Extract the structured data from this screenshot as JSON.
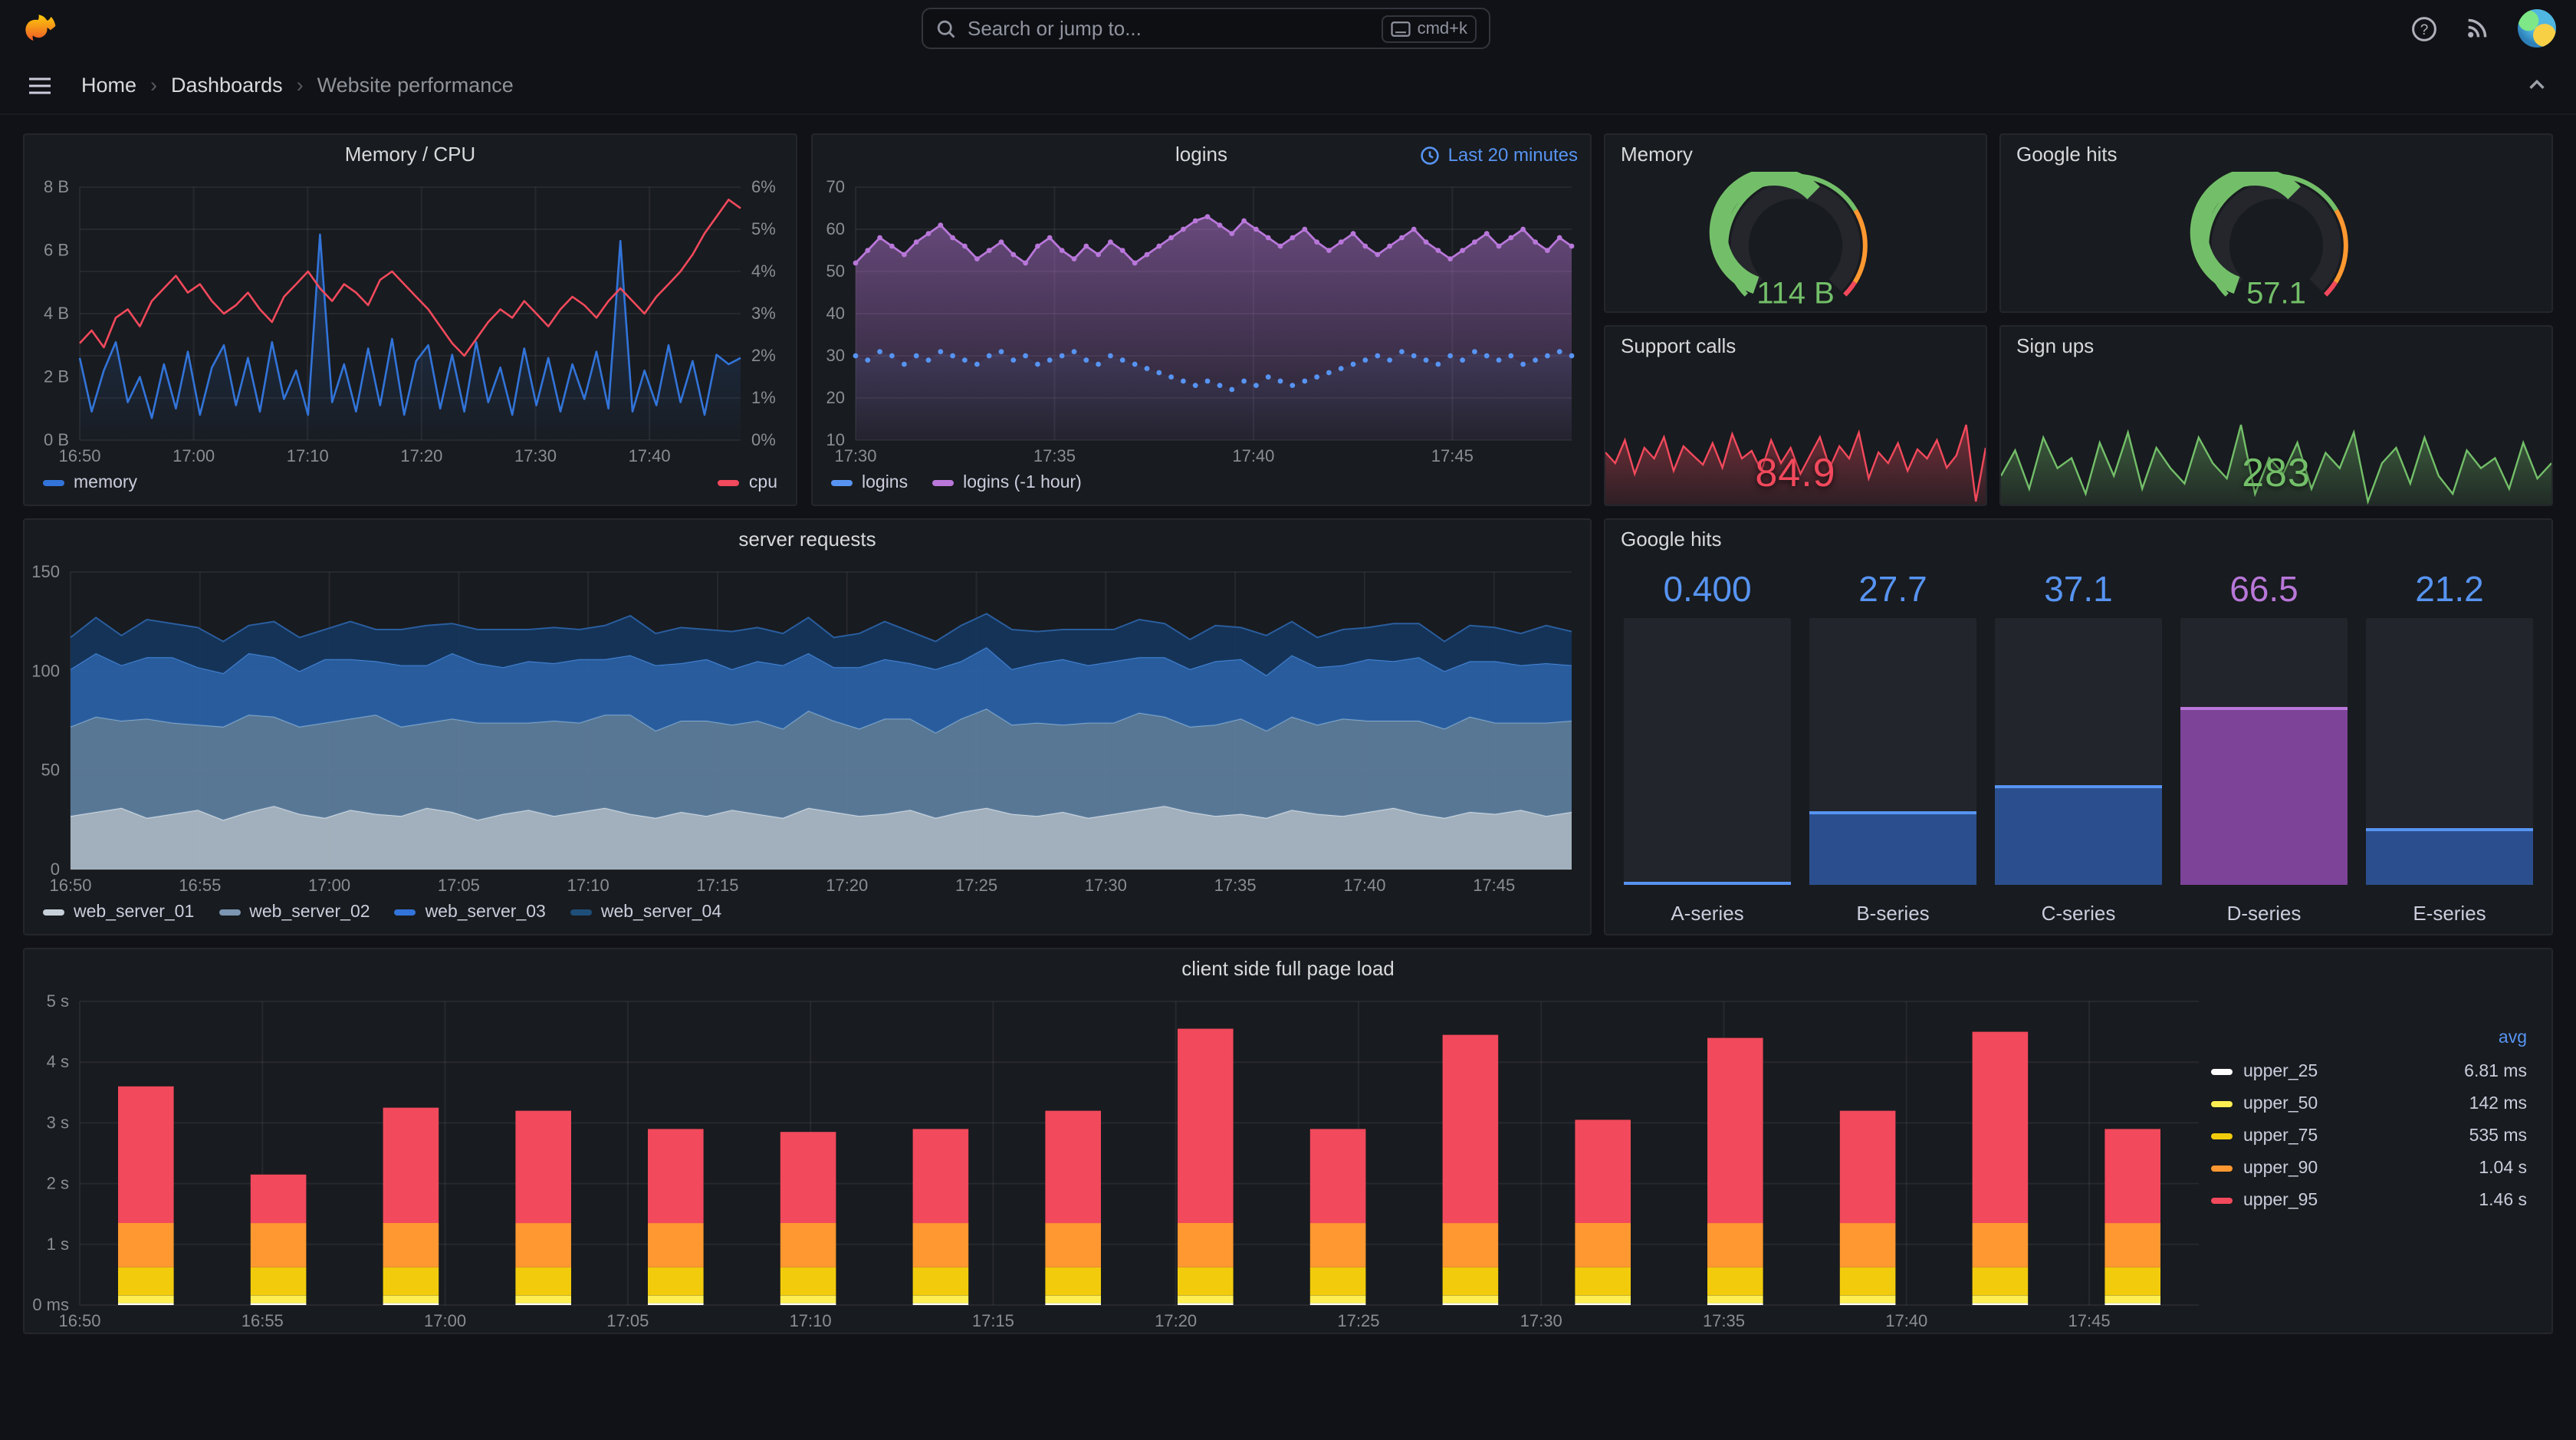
{
  "colors": {
    "blue": "#5794f2",
    "dark_blue": "#3274d9",
    "purple": "#b877d9",
    "red": "#f2495c",
    "green": "#73bf69",
    "orange": "#ff9830",
    "yellow": "#fade2a"
  },
  "topbar": {
    "search_placeholder": "Search or jump to...",
    "shortcut": "cmd+k"
  },
  "breadcrumb": {
    "items": [
      "Home",
      "Dashboards",
      "Website performance"
    ]
  },
  "panels": {
    "memory_cpu": {
      "title": "Memory / CPU",
      "legend": [
        {
          "name": "memory",
          "color": "#3274d9"
        },
        {
          "name": "cpu",
          "color": "#f2495c"
        }
      ]
    },
    "logins": {
      "title": "logins",
      "time_badge": "Last 20 minutes",
      "legend": [
        {
          "name": "logins",
          "color": "#5794f2"
        },
        {
          "name": "logins (-1 hour)",
          "color": "#b877d9"
        }
      ]
    },
    "memory_stat": {
      "title": "Memory"
    },
    "google_hits_gauge": {
      "title": "Google hits"
    },
    "support_calls": {
      "title": "Support calls",
      "value": "84.9"
    },
    "sign_ups": {
      "title": "Sign ups",
      "value": "283"
    },
    "server_requests": {
      "title": "server requests",
      "legend": [
        {
          "name": "web_server_01",
          "color": "#c7d0d9"
        },
        {
          "name": "web_server_02",
          "color": "#7b95b2"
        },
        {
          "name": "web_server_03",
          "color": "#3274d9"
        },
        {
          "name": "web_server_04",
          "color": "#1f4e79"
        }
      ]
    },
    "google_hits_bars": {
      "title": "Google hits"
    },
    "client_load": {
      "title": "client side full page load",
      "legend_header": "avg",
      "legend": [
        {
          "name": "upper_25",
          "value": "6.81 ms",
          "color": "#ffffff"
        },
        {
          "name": "upper_50",
          "value": "142 ms",
          "color": "#ffee52"
        },
        {
          "name": "upper_75",
          "value": "535 ms",
          "color": "#f2cc0c"
        },
        {
          "name": "upper_90",
          "value": "1.04 s",
          "color": "#ff9830"
        },
        {
          "name": "upper_95",
          "value": "1.46 s",
          "color": "#f2495c"
        }
      ]
    }
  },
  "chart_data": [
    {
      "id": "memory_cpu",
      "type": "line",
      "title": "Memory / CPU",
      "x_ticks": [
        "16:50",
        "17:00",
        "17:10",
        "17:20",
        "17:30",
        "17:40"
      ],
      "left_axis": {
        "labels": [
          "8 B",
          "6 B",
          "4 B",
          "2 B",
          "0 B"
        ],
        "min": 0,
        "max": 8,
        "unit": "bytes"
      },
      "right_axis": {
        "labels": [
          "6%",
          "5%",
          "4%",
          "3%",
          "2%",
          "1%",
          "0%"
        ],
        "min": 0,
        "max": 6,
        "unit": "percent"
      },
      "series": [
        {
          "name": "memory",
          "axis": "left",
          "color": "#3274d9",
          "values": [
            2.6,
            0.9,
            2.2,
            3.1,
            1.2,
            2.0,
            0.7,
            2.4,
            1.0,
            2.8,
            0.8,
            2.3,
            3.0,
            1.1,
            2.6,
            0.9,
            3.1,
            1.3,
            2.2,
            0.8,
            6.5,
            1.2,
            2.4,
            0.9,
            2.9,
            1.1,
            3.2,
            0.8,
            2.5,
            3.0,
            1.0,
            2.7,
            0.9,
            3.1,
            1.2,
            2.3,
            0.8,
            2.9,
            1.1,
            2.6,
            0.9,
            2.4,
            1.3,
            2.8,
            1.0,
            6.3,
            0.9,
            2.2,
            1.1,
            3.0,
            1.2,
            2.5,
            0.8,
            2.7,
            2.4,
            2.6
          ]
        },
        {
          "name": "cpu",
          "axis": "right",
          "color": "#f2495c",
          "values": [
            2.3,
            2.6,
            2.2,
            2.9,
            3.1,
            2.7,
            3.3,
            3.6,
            3.9,
            3.5,
            3.7,
            3.3,
            3.0,
            3.2,
            3.5,
            3.1,
            2.8,
            3.4,
            3.7,
            4.0,
            3.6,
            3.3,
            3.7,
            3.5,
            3.2,
            3.8,
            4.0,
            3.7,
            3.4,
            3.1,
            2.7,
            2.3,
            2.0,
            2.4,
            2.8,
            3.1,
            2.9,
            3.3,
            3.0,
            2.7,
            3.1,
            3.4,
            3.2,
            2.9,
            3.3,
            3.6,
            3.3,
            3.0,
            3.4,
            3.7,
            4.0,
            4.4,
            4.9,
            5.3,
            5.7,
            5.5
          ]
        }
      ]
    },
    {
      "id": "logins",
      "type": "line",
      "title": "logins",
      "time_range": "Last 20 minutes",
      "x_ticks": [
        "17:30",
        "17:35",
        "17:40",
        "17:45"
      ],
      "y_ticks": [
        "70",
        "60",
        "50",
        "40",
        "30",
        "20",
        "10"
      ],
      "ymin": 10,
      "ymax": 70,
      "series": [
        {
          "name": "logins (-1 hour)",
          "color": "#b877d9",
          "style": "area-points",
          "values": [
            52,
            55,
            58,
            56,
            54,
            57,
            59,
            61,
            58,
            56,
            53,
            55,
            57,
            54,
            52,
            56,
            58,
            55,
            53,
            56,
            54,
            57,
            55,
            52,
            54,
            56,
            58,
            60,
            62,
            63,
            61,
            59,
            62,
            60,
            58,
            56,
            58,
            60,
            57,
            55,
            57,
            59,
            56,
            54,
            56,
            58,
            60,
            57,
            55,
            53,
            55,
            57,
            59,
            56,
            58,
            60,
            57,
            55,
            58,
            56
          ]
        },
        {
          "name": "logins",
          "color": "#5794f2",
          "style": "points",
          "values": [
            30,
            29,
            31,
            30,
            28,
            30,
            29,
            31,
            30,
            29,
            28,
            30,
            31,
            29,
            30,
            28,
            29,
            30,
            31,
            29,
            28,
            30,
            29,
            28,
            27,
            26,
            25,
            24,
            23,
            24,
            23,
            22,
            24,
            23,
            25,
            24,
            23,
            24,
            25,
            26,
            27,
            28,
            29,
            30,
            29,
            31,
            30,
            29,
            28,
            30,
            29,
            31,
            30,
            29,
            30,
            28,
            29,
            30,
            31,
            30
          ]
        }
      ]
    },
    {
      "id": "memory_gauge",
      "type": "gauge",
      "title": "Memory",
      "value": "114 B",
      "percent": 57,
      "color": "#73bf69",
      "thresholds": [
        {
          "to": 72,
          "color": "#73bf69"
        },
        {
          "to": 95,
          "color": "#ff9830"
        },
        {
          "to": 100,
          "color": "#f2495c"
        }
      ]
    },
    {
      "id": "google_hits_gauge",
      "type": "gauge",
      "title": "Google hits",
      "value": "57.1",
      "percent": 57,
      "color": "#73bf69",
      "thresholds": [
        {
          "to": 72,
          "color": "#73bf69"
        },
        {
          "to": 95,
          "color": "#ff9830"
        },
        {
          "to": 100,
          "color": "#f2495c"
        }
      ]
    },
    {
      "id": "support_calls",
      "type": "area",
      "title": "Support calls",
      "value": "84.9",
      "color": "#f2495c",
      "values": [
        62,
        55,
        70,
        48,
        65,
        58,
        72,
        50,
        66,
        60,
        54,
        68,
        52,
        74,
        58,
        63,
        50,
        70,
        55,
        65,
        48,
        60,
        72,
        52,
        66,
        58,
        75,
        45,
        62,
        55,
        68,
        50,
        64,
        58,
        70,
        52,
        60,
        80,
        30,
        65
      ]
    },
    {
      "id": "sign_ups",
      "type": "area",
      "title": "Sign ups",
      "value": "283",
      "color": "#73bf69",
      "values": [
        55,
        65,
        50,
        70,
        58,
        62,
        48,
        68,
        55,
        72,
        50,
        66,
        58,
        52,
        70,
        60,
        54,
        75,
        48,
        62,
        56,
        68,
        50,
        64,
        58,
        72,
        45,
        60,
        66,
        52,
        70,
        55,
        48,
        65,
        58,
        62,
        50,
        68,
        54,
        60
      ]
    },
    {
      "id": "server_requests",
      "type": "area",
      "title": "server requests",
      "stacked": true,
      "x_ticks": [
        "16:50",
        "16:55",
        "17:00",
        "17:05",
        "17:10",
        "17:15",
        "17:20",
        "17:25",
        "17:30",
        "17:35",
        "17:40",
        "17:45"
      ],
      "y_ticks": [
        "150",
        "100",
        "50",
        "0"
      ],
      "ymin": 0,
      "ymax": 150,
      "series": [
        {
          "name": "web_server_01",
          "fill": "#aebdca",
          "stroke": "#cfd8e0",
          "values": [
            27,
            29,
            31,
            26,
            28,
            30,
            25,
            29,
            32,
            28,
            26,
            30,
            28,
            27,
            31,
            29,
            25,
            28,
            30,
            27,
            29,
            31,
            28,
            26,
            29,
            27,
            30,
            28,
            26,
            31,
            29,
            27,
            28,
            30,
            26,
            29,
            31,
            28,
            27,
            29,
            26,
            28,
            30,
            32,
            29,
            27,
            28,
            26,
            30,
            28,
            27,
            29,
            31,
            28,
            26,
            29,
            28,
            30,
            27,
            29
          ]
        },
        {
          "name": "web_server_02",
          "fill": "#5e7f9f",
          "stroke": "#82a6c4",
          "values": [
            45,
            48,
            44,
            50,
            46,
            43,
            47,
            49,
            45,
            44,
            48,
            46,
            50,
            45,
            43,
            47,
            49,
            46,
            44,
            48,
            45,
            47,
            50,
            44,
            46,
            48,
            43,
            47,
            45,
            49,
            46,
            44,
            48,
            46,
            43,
            47,
            50,
            45,
            47,
            44,
            48,
            46,
            49,
            45,
            43,
            46,
            48,
            44,
            47,
            45,
            49,
            46,
            44,
            47,
            45,
            48,
            46,
            44,
            47,
            46
          ]
        },
        {
          "name": "web_server_03",
          "fill": "#2a62a8",
          "stroke": "#4585d6",
          "values": [
            29,
            32,
            28,
            31,
            33,
            29,
            27,
            31,
            30,
            28,
            32,
            30,
            27,
            31,
            29,
            33,
            30,
            28,
            31,
            29,
            32,
            28,
            30,
            33,
            29,
            31,
            28,
            30,
            32,
            29,
            27,
            31,
            30,
            28,
            32,
            29,
            31,
            28,
            30,
            33,
            29,
            31,
            28,
            30,
            29,
            32,
            30,
            28,
            31,
            29,
            27,
            31,
            30,
            32,
            29,
            28,
            31,
            29,
            30,
            28
          ]
        },
        {
          "name": "web_server_04",
          "fill": "#15355c",
          "stroke": "#2a5d9e",
          "values": [
            16,
            18,
            15,
            19,
            17,
            20,
            16,
            14,
            18,
            17,
            15,
            19,
            16,
            18,
            20,
            15,
            17,
            19,
            16,
            18,
            15,
            17,
            20,
            16,
            18,
            15,
            19,
            17,
            16,
            18,
            15,
            17,
            19,
            16,
            14,
            18,
            17,
            20,
            16,
            15,
            18,
            16,
            19,
            17,
            15,
            18,
            16,
            20,
            17,
            15,
            18,
            16,
            19,
            17,
            15,
            18,
            17,
            16,
            19,
            17
          ]
        }
      ]
    },
    {
      "id": "google_hits_bars",
      "type": "bar",
      "title": "Google hits",
      "max": 100,
      "items": [
        {
          "label": "A-series",
          "display": "0.400",
          "value": 0.4,
          "color": "#5794f2",
          "fill": "#2b4f8e"
        },
        {
          "label": "B-series",
          "display": "27.7",
          "value": 27.7,
          "color": "#5794f2",
          "fill": "#2b4f8e"
        },
        {
          "label": "C-series",
          "display": "37.1",
          "value": 37.1,
          "color": "#5794f2",
          "fill": "#2b4f8e"
        },
        {
          "label": "D-series",
          "display": "66.5",
          "value": 66.5,
          "color": "#b877d9",
          "fill": "#7d4399"
        },
        {
          "label": "E-series",
          "display": "21.2",
          "value": 21.2,
          "color": "#5794f2",
          "fill": "#2b4f8e"
        }
      ]
    },
    {
      "id": "client_page_load",
      "type": "bar",
      "title": "client side full page load",
      "stacked": true,
      "x_ticks": [
        "16:50",
        "16:55",
        "17:00",
        "17:05",
        "17:10",
        "17:15",
        "17:20",
        "17:25",
        "17:30",
        "17:35",
        "17:40",
        "17:45"
      ],
      "y_ticks": [
        "5 s",
        "4 s",
        "3 s",
        "2 s",
        "1 s",
        "0 ms"
      ],
      "ymin": 0,
      "ymax": 5,
      "series_names": [
        "upper_25",
        "upper_50",
        "upper_75",
        "upper_90",
        "upper_95"
      ],
      "segment_bounds_s": [
        0.03,
        0.16,
        0.62,
        1.35
      ],
      "segment_colors": [
        "#ffffff",
        "#ffee52",
        "#f2cc0c",
        "#ff9830",
        "#f2495c"
      ],
      "totals_s": [
        3.6,
        2.15,
        3.25,
        3.2,
        2.9,
        2.85,
        2.9,
        3.2,
        4.55,
        2.9,
        4.45,
        3.05,
        4.4,
        3.2,
        4.5,
        2.9
      ]
    }
  ]
}
